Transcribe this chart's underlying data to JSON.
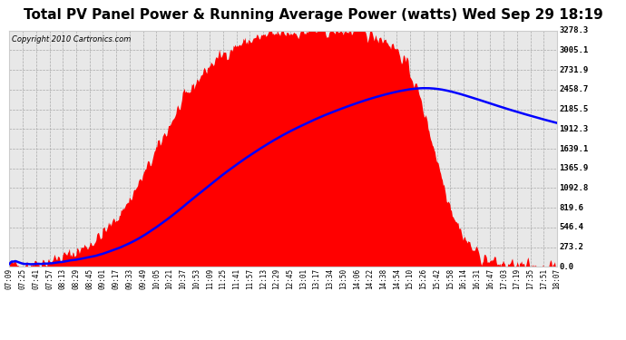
{
  "title": "Total PV Panel Power & Running Average Power (watts) Wed Sep 29 18:19",
  "copyright": "Copyright 2010 Cartronics.com",
  "y_max": 3278.3,
  "y_ticks": [
    0.0,
    273.2,
    546.4,
    819.6,
    1092.8,
    1365.9,
    1639.1,
    1912.3,
    2185.5,
    2458.7,
    2731.9,
    3005.1,
    3278.3
  ],
  "background_color": "#ffffff",
  "plot_bg_color": "#e8e8e8",
  "grid_color": "#aaaaaa",
  "fill_color": "#ff0000",
  "avg_line_color": "#0000ff",
  "title_fontsize": 11,
  "x_labels": [
    "07:09",
    "07:25",
    "07:41",
    "07:57",
    "08:13",
    "08:29",
    "08:45",
    "09:01",
    "09:17",
    "09:33",
    "09:49",
    "10:05",
    "10:21",
    "10:37",
    "10:53",
    "11:09",
    "11:25",
    "11:41",
    "11:57",
    "12:13",
    "12:29",
    "12:45",
    "13:01",
    "13:17",
    "13:34",
    "13:50",
    "14:06",
    "14:22",
    "14:38",
    "14:54",
    "15:10",
    "15:26",
    "15:42",
    "15:58",
    "16:14",
    "16:31",
    "16:47",
    "17:03",
    "17:19",
    "17:35",
    "17:51",
    "18:07"
  ]
}
